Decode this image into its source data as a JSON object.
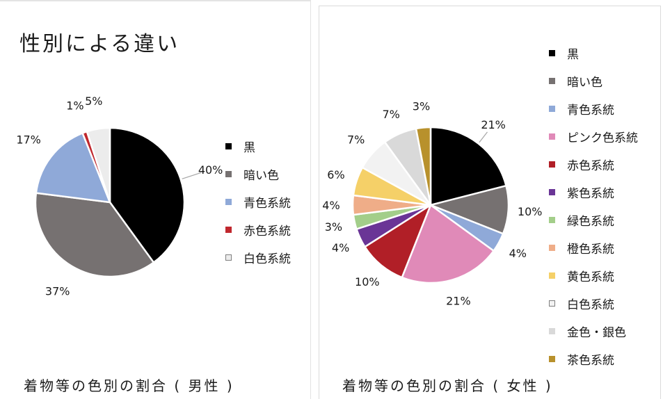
{
  "title": "性別による違い",
  "chart_data": [
    {
      "type": "pie",
      "caption": "着物等の色別の割合 ( 男性 )",
      "categories": [
        "黒",
        "暗い色",
        "青色系統",
        "赤色系統",
        "白色系統"
      ],
      "values": [
        40,
        37,
        17,
        1,
        5
      ],
      "labels": [
        "40%",
        "37%",
        "17%",
        "1%",
        "5%"
      ],
      "colors": [
        "#000000",
        "#767171",
        "#8fa9d8",
        "#c0272d",
        "#ececec"
      ],
      "legend": "right"
    },
    {
      "type": "pie",
      "caption": "着物等の色別の割合 ( 女性 )",
      "categories": [
        "黒",
        "暗い色",
        "青色系統",
        "ピンク色系統",
        "赤色系統",
        "紫色系統",
        "緑色系統",
        "橙色系統",
        "黄色系統",
        "白色系統",
        "金色・銀色",
        "茶色系統"
      ],
      "values": [
        21,
        10,
        4,
        21,
        10,
        4,
        3,
        4,
        6,
        7,
        7,
        3
      ],
      "labels": [
        "21%",
        "10%",
        "4%",
        "21%",
        "10%",
        "4%",
        "3%",
        "4%",
        "6%",
        "7%",
        "7%",
        "3%"
      ],
      "colors": [
        "#000000",
        "#767171",
        "#8fa9d8",
        "#e08ab8",
        "#b11f27",
        "#6a3596",
        "#a3ce8a",
        "#efad88",
        "#f5d068",
        "#f2f2f2",
        "#d9d9d9",
        "#b8912c"
      ],
      "legend": "right"
    }
  ]
}
